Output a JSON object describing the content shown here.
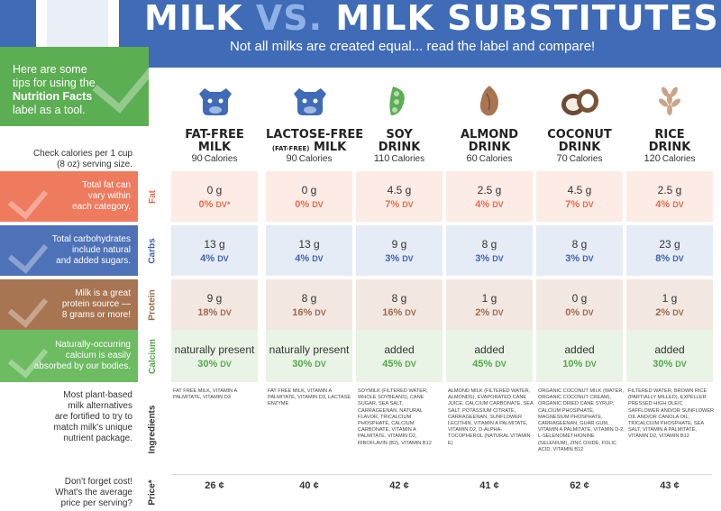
{
  "header": {
    "title_part1": "MILK",
    "title_vs": "VS.",
    "title_part2": "MILK SUBSTITUTES",
    "subtitle": "Not all milks are created equal... read the label and compare!"
  },
  "intro": {
    "line1": "Here are some",
    "line2": "tips for using the",
    "line3_bold": "Nutrition Facts",
    "line4": "label as a tool."
  },
  "left_notes": {
    "calories": [
      "Check calories per 1 cup",
      "(8 oz) serving size."
    ],
    "fat": [
      "Total fat can",
      "vary within",
      "each category."
    ],
    "carbs": [
      "Total carbohydrates",
      "include natural",
      "and added sugars."
    ],
    "protein": [
      "Milk is a great",
      "protein source —",
      "8 grams or more!"
    ],
    "calcium": [
      "Naturally-occurring",
      "calcium is easily",
      "absorbed by our bodies."
    ],
    "ingredients": [
      "Most plant-based",
      "milk alternatives",
      "are fortified to try to",
      "match milk's unique",
      "nutrient package."
    ],
    "price": [
      "Don't forget cost!",
      "What's the average",
      "price per serving?"
    ]
  },
  "row_labels": {
    "fat": "Fat",
    "carbs": "Carbs",
    "protein": "Protein",
    "calcium": "Calcium",
    "ingredients": "Ingredients",
    "price": "Price*"
  },
  "colors": {
    "header_blue": "#3f6bb7",
    "intro_green": "#5bae52",
    "fat_band": "#ef7b5f",
    "fat_cell": "#fdece6",
    "fat_text": "#ee6a48",
    "carbs_band": "#4e72b8",
    "carbs_cell": "#e6ecf6",
    "carbs_text": "#3d63b0",
    "protein_band": "#a87552",
    "protein_cell": "#f2e8e1",
    "protein_text": "#a0694a",
    "calcium_band": "#6dbc62",
    "calcium_cell": "#e9f4e6",
    "calcium_text": "#52a74a"
  },
  "calories_unit": "Calories",
  "dv_unit": "DV",
  "columns": [
    {
      "icon": "cow-icon",
      "name1": "FAT-FREE",
      "name_small": "",
      "name2": "MILK",
      "calories": "90",
      "fat": "0 g",
      "fat_dv": "0%",
      "fat_dv_suffix": "DV*",
      "carbs": "13 g",
      "carbs_dv": "4%",
      "protein": "9 g",
      "protein_dv": "18%",
      "calcium": "naturally present",
      "calcium_dv": "30%",
      "ingredients": "FAT FREE MILK, VITAMIN A PALMITATE, VITAMIN D3",
      "price": "26 ¢"
    },
    {
      "icon": "cow-icon",
      "name1": "LACTOSE-FREE",
      "name_small": "(FAT-FREE)",
      "name2": "MILK",
      "calories": "90",
      "fat": "0 g",
      "fat_dv": "0%",
      "fat_dv_suffix": "DV",
      "carbs": "13 g",
      "carbs_dv": "4%",
      "protein": "8 g",
      "protein_dv": "16%",
      "calcium": "naturally present",
      "calcium_dv": "30%",
      "ingredients": "FAT FREE MILK, VITAMIN A PALMITATE, VITAMIN D3, LACTASE ENZYME",
      "price": "40 ¢"
    },
    {
      "icon": "soybean-icon",
      "name1": "SOY",
      "name_small": "",
      "name2": "DRINK",
      "calories": "110",
      "fat": "4.5 g",
      "fat_dv": "7%",
      "fat_dv_suffix": "DV",
      "carbs": "9 g",
      "carbs_dv": "3%",
      "protein": "8 g",
      "protein_dv": "16%",
      "calcium": "added",
      "calcium_dv": "45%",
      "ingredients": "SOYMILK (FILTERED WATER, WHOLE SOYBEANS), CANE SUGAR, SEA SALT, CARRAGEENAN, NATURAL FLAVOR, TRICALCIUM PHOSPHATE, CALCIUM CARBONATE, VITAMIN A PALMITATE, VITAMIN D2, RIBOFLAVIN (B2), VITAMIN B12",
      "price": "42 ¢"
    },
    {
      "icon": "almond-icon",
      "name1": "ALMOND",
      "name_small": "",
      "name2": "DRINK",
      "calories": "60",
      "fat": "2.5 g",
      "fat_dv": "4%",
      "fat_dv_suffix": "DV",
      "carbs": "8 g",
      "carbs_dv": "3%",
      "protein": "1 g",
      "protein_dv": "2%",
      "calcium": "added",
      "calcium_dv": "45%",
      "ingredients": "ALMOND MILK (FILTERED WATER, ALMONDS), EVAPORATED CANE JUICE, CALCIUM CARBONATE, SEA SALT, POTASSIUM CITRATE, CARRAGEENAN, SUNFLOWER LECITHIN, VITAMIN A PALMITATE, VITAMIN D2, D-ALPHA-TOCOPHEROL (NATURAL VITAMIN E)",
      "price": "41 ¢"
    },
    {
      "icon": "coconut-icon",
      "name1": "COCONUT",
      "name_small": "",
      "name2": "DRINK",
      "calories": "70",
      "fat": "4.5 g",
      "fat_dv": "7%",
      "fat_dv_suffix": "DV",
      "carbs": "8 g",
      "carbs_dv": "3%",
      "protein": "0 g",
      "protein_dv": "0%",
      "calcium": "added",
      "calcium_dv": "10%",
      "ingredients": "ORGANIC COCONUT MILK (WATER, ORGANIC COCONUT CREAM), ORGANIC DRIED CANE SYRUP, CALCIUM PHOSPHATE, MAGNESIUM PHOSPHATE, CARRAGEENAN, GUAR GUM, VITAMIN A PALMITATE, VITAMIN D-2, L-SELENOMETHIONINE (SELENIUM), ZINC OXIDE, FOLIC ACID, VITAMIN B12",
      "price": "62 ¢"
    },
    {
      "icon": "rice-icon",
      "name1": "RICE",
      "name_small": "",
      "name2": "DRINK",
      "calories": "120",
      "fat": "2.5 g",
      "fat_dv": "4%",
      "fat_dv_suffix": "DV",
      "carbs": "23 g",
      "carbs_dv": "8%",
      "protein": "1 g",
      "protein_dv": "2%",
      "calcium": "added",
      "calcium_dv": "30%",
      "ingredients": "FILTERED WATER, BROWN RICE (PARTIALLY MILLED), EXPELLER PRESSED HIGH OLEIC SAFFLOWER AND/OR SUNFLOWER OIL AND/OR CANOLA OIL, TRICALCIUM PHOSPHATE, SEA SALT, VITAMIN A PALMITATE, VITAMIN D2, VITAMIN B12",
      "price": "43 ¢"
    }
  ]
}
